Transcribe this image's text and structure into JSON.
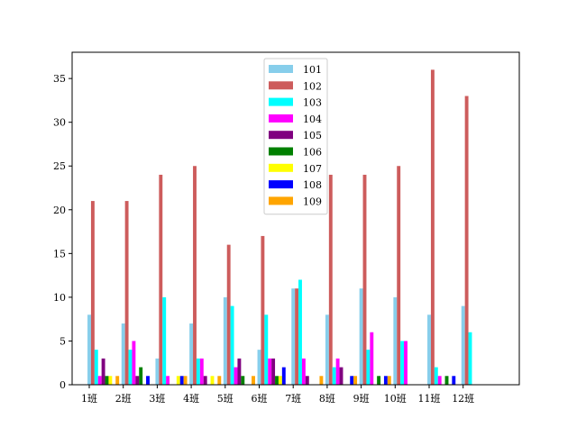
{
  "chart_data": {
    "type": "bar",
    "title": "",
    "xlabel": "",
    "ylabel": "",
    "categories": [
      "1班",
      "2班",
      "3班",
      "4班",
      "5班",
      "6班",
      "7班",
      "8班",
      "9班",
      "10班",
      "11班",
      "12班"
    ],
    "ylim": [
      0,
      38
    ],
    "yticks": [
      0,
      5,
      10,
      15,
      20,
      25,
      30,
      35
    ],
    "grid": false,
    "legend_position": "top-center",
    "series": [
      {
        "name": "101",
        "color": "#87ceeb",
        "values": [
          8,
          7,
          3,
          7,
          10,
          4,
          11,
          8,
          11,
          10,
          8,
          9
        ]
      },
      {
        "name": "102",
        "color": "#cd5c5c",
        "values": [
          21,
          21,
          24,
          25,
          16,
          17,
          11,
          24,
          24,
          25,
          36,
          33
        ]
      },
      {
        "name": "103",
        "color": "#00ffff",
        "values": [
          4,
          4,
          10,
          3,
          9,
          8,
          12,
          2,
          4,
          5,
          2,
          6
        ]
      },
      {
        "name": "104",
        "color": "#ff00ff",
        "values": [
          1,
          5,
          1,
          3,
          2,
          3,
          3,
          3,
          6,
          5,
          1,
          0
        ]
      },
      {
        "name": "105",
        "color": "#800080",
        "values": [
          3,
          1,
          0,
          1,
          3,
          3,
          1,
          2,
          0,
          0,
          0,
          0
        ]
      },
      {
        "name": "106",
        "color": "#008000",
        "values": [
          1,
          2,
          0,
          0,
          1,
          1,
          0,
          0,
          1,
          0,
          1,
          0
        ]
      },
      {
        "name": "107",
        "color": "#ffff00",
        "values": [
          1,
          0,
          1,
          1,
          0,
          1,
          0,
          0,
          0,
          0,
          0,
          0
        ]
      },
      {
        "name": "108",
        "color": "#0000ff",
        "values": [
          0,
          1,
          1,
          0,
          0,
          2,
          0,
          1,
          1,
          0,
          1,
          0
        ]
      },
      {
        "name": "109",
        "color": "#ffa500",
        "values": [
          1,
          0,
          1,
          1,
          1,
          0,
          1,
          1,
          1,
          0,
          0,
          0
        ]
      }
    ]
  }
}
